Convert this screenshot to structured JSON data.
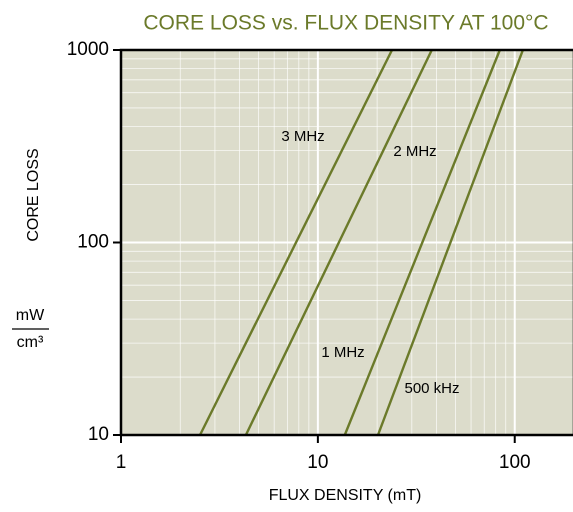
{
  "chart_data": {
    "type": "line",
    "title": "CORE LOSS vs. FLUX DENSITY AT 100°C",
    "x_label": "FLUX DENSITY (mT)",
    "y_label": "CORE LOSS",
    "y_unit_numerator": "mW",
    "y_unit_denominator": "cm³",
    "x_scale": "log",
    "y_scale": "log",
    "xlim": [
      1,
      200
    ],
    "ylim": [
      10,
      1000
    ],
    "xticks": [
      1,
      10,
      100
    ],
    "yticks": [
      10,
      100,
      1000
    ],
    "grid": true,
    "background": "#dcdccb",
    "series": [
      {
        "name": "3 MHz",
        "color": "#6b7a2a",
        "x": [
          2.52,
          23.8
        ],
        "values": [
          10,
          1000
        ]
      },
      {
        "name": "2 MHz",
        "color": "#6b7a2a",
        "x": [
          4.31,
          37.9
        ],
        "values": [
          10,
          1000
        ]
      },
      {
        "name": "1 MHz",
        "color": "#6b7a2a",
        "x": [
          13.7,
          84
        ],
        "values": [
          10,
          1000
        ]
      },
      {
        "name": "500 kHz",
        "color": "#6b7a2a",
        "x": [
          20.2,
          110
        ],
        "values": [
          10,
          1000
        ]
      }
    ]
  }
}
